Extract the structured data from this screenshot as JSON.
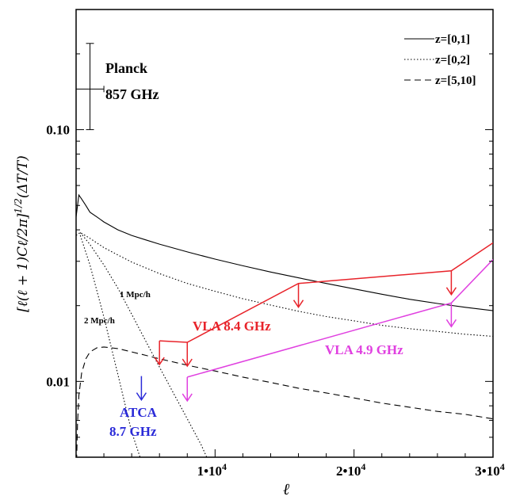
{
  "chart_data": {
    "type": "line",
    "xlabel": "ℓ",
    "ylabel": "[ℓ(ℓ + 1)Cℓ/2π]^1/2(ΔT/T)",
    "y_scale": "log",
    "xlim": [
      0,
      30000
    ],
    "ylim": [
      0.005,
      0.3
    ],
    "x_ticks": [
      {
        "value": 10000,
        "label": "1•10",
        "exp": "4"
      },
      {
        "value": 20000,
        "label": "2•10",
        "exp": "4"
      },
      {
        "value": 30000,
        "label": "3•10",
        "exp": "4"
      }
    ],
    "y_ticks": [
      {
        "value": 0.01,
        "label": "0.01"
      },
      {
        "value": 0.1,
        "label": "0.10"
      }
    ],
    "legend": {
      "placement": "top-right",
      "entries": [
        {
          "label": "z=[0,1]",
          "style": "solid"
        },
        {
          "label": "z=[0,2]",
          "style": "dotted"
        },
        {
          "label": "z=[5,10]",
          "style": "dashed"
        }
      ]
    },
    "series": [
      {
        "name": "z=[0,1]",
        "style": "solid",
        "color": "#000000",
        "x": [
          0,
          200,
          400,
          700,
          1000,
          1500,
          2000,
          3000,
          4000,
          5000,
          6000,
          8000,
          10000,
          12000,
          14000,
          16000,
          18000,
          20000,
          22000,
          24000,
          26000,
          28000,
          30000
        ],
        "y": [
          0.045,
          0.055,
          0.053,
          0.05,
          0.047,
          0.045,
          0.043,
          0.04,
          0.038,
          0.0365,
          0.0351,
          0.0327,
          0.0306,
          0.0288,
          0.0272,
          0.0258,
          0.0245,
          0.0233,
          0.0222,
          0.0212,
          0.0204,
          0.0197,
          0.0191
        ]
      },
      {
        "name": "z=[0,2]",
        "style": "dotted",
        "color": "#000000",
        "x": [
          0,
          300,
          1000,
          2000,
          3000,
          4000,
          6000,
          8000,
          10000,
          12000,
          14000,
          16000,
          18000,
          20000,
          22000,
          24000,
          26000,
          28000,
          30000
        ],
        "y": [
          0.038,
          0.039,
          0.037,
          0.034,
          0.0318,
          0.0298,
          0.0268,
          0.0245,
          0.0228,
          0.0213,
          0.0201,
          0.019,
          0.0181,
          0.0174,
          0.0167,
          0.0162,
          0.0158,
          0.0154,
          0.0151
        ]
      },
      {
        "style": "dotted",
        "color": "#000000",
        "x": [
          300,
          1000,
          2000,
          3000,
          4000,
          5000,
          6000,
          7000,
          8000,
          9000,
          9400
        ],
        "y": [
          0.039,
          0.035,
          0.029,
          0.0235,
          0.0185,
          0.0145,
          0.0114,
          0.009,
          0.0071,
          0.0056,
          0.005
        ]
      },
      {
        "style": "dotted",
        "color": "#000000",
        "x": [
          300,
          1000,
          2000,
          3000,
          4000,
          4600
        ],
        "y": [
          0.038,
          0.029,
          0.018,
          0.0107,
          0.0063,
          0.005
        ]
      },
      {
        "name": "z=[5,10]",
        "style": "dashed",
        "color": "#000000",
        "x": [
          0,
          50,
          100,
          200,
          400,
          700,
          1000,
          1500,
          2000,
          3000,
          4000,
          5000,
          6000,
          8000,
          10000,
          12000,
          14000,
          16000,
          18000,
          20000,
          22000,
          24000,
          26000,
          28000,
          30000
        ],
        "y": [
          0.004,
          0.0052,
          0.0068,
          0.0088,
          0.0108,
          0.0123,
          0.0131,
          0.0136,
          0.0137,
          0.0135,
          0.0131,
          0.0127,
          0.0123,
          0.0116,
          0.011,
          0.0104,
          0.0099,
          0.0094,
          0.009,
          0.0086,
          0.0082,
          0.0079,
          0.0076,
          0.0074,
          0.0071
        ]
      }
    ],
    "upper_limits": [
      {
        "name": "VLA 8.4 GHz",
        "color": "#e8232a",
        "x": [
          6000,
          8000,
          16000,
          27000,
          30000
        ],
        "y": [
          0.0145,
          0.0143,
          0.0245,
          0.0275,
          0.0355
        ]
      },
      {
        "name": "VLA 4.9 GHz",
        "color": "#e040e0",
        "x": [
          8000,
          27000,
          30000
        ],
        "y": [
          0.0104,
          0.0205,
          0.0305
        ]
      },
      {
        "name": "ATCA 8.7 GHz",
        "color": "#2a2ad8",
        "x": [
          4700
        ],
        "y": [
          0.0105
        ]
      }
    ],
    "annotations": {
      "planck_label": "Planck",
      "planck_freq": "857 GHz",
      "vla84": "VLA 8.4 GHz",
      "vla49": "VLA 4.9 GHz",
      "atca_name": "ATCA",
      "atca_freq": "8.7 GHz",
      "scale_1": "1 Mpc/h",
      "scale_2": "2 Mpc/h"
    },
    "planck_point": {
      "x": 1000,
      "y": 0.145,
      "yerr_lo": 0.1,
      "yerr_hi": 0.22,
      "xerr": 1000
    }
  }
}
